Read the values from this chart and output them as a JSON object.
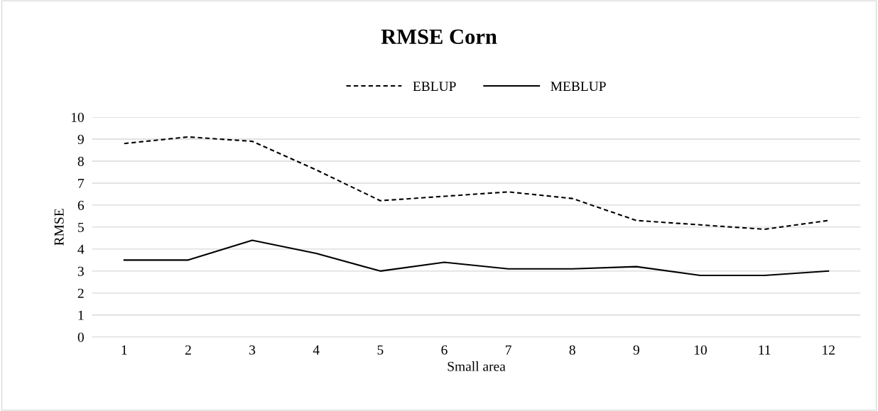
{
  "chart_data": {
    "type": "line",
    "title": "RMSE Corn",
    "xlabel": "Small area",
    "ylabel": "RMSE",
    "categories": [
      "1",
      "2",
      "3",
      "4",
      "5",
      "6",
      "7",
      "8",
      "9",
      "10",
      "11",
      "12"
    ],
    "series": [
      {
        "name": "EBLUP",
        "color": "#000000",
        "line_style": "dashed",
        "values": [
          8.8,
          9.1,
          8.9,
          7.6,
          6.2,
          6.4,
          6.6,
          6.3,
          5.3,
          5.1,
          4.9,
          5.3
        ]
      },
      {
        "name": "MEBLUP",
        "color": "#000000",
        "line_style": "solid",
        "values": [
          3.5,
          3.5,
          4.4,
          3.8,
          3.0,
          3.4,
          3.1,
          3.1,
          3.2,
          2.8,
          2.8,
          3.0
        ]
      }
    ],
    "ylim": [
      0,
      10
    ],
    "yticks": [
      0,
      1,
      2,
      3,
      4,
      5,
      6,
      7,
      8,
      9,
      10
    ],
    "grid": "y",
    "legend": "top",
    "marker": "none"
  }
}
